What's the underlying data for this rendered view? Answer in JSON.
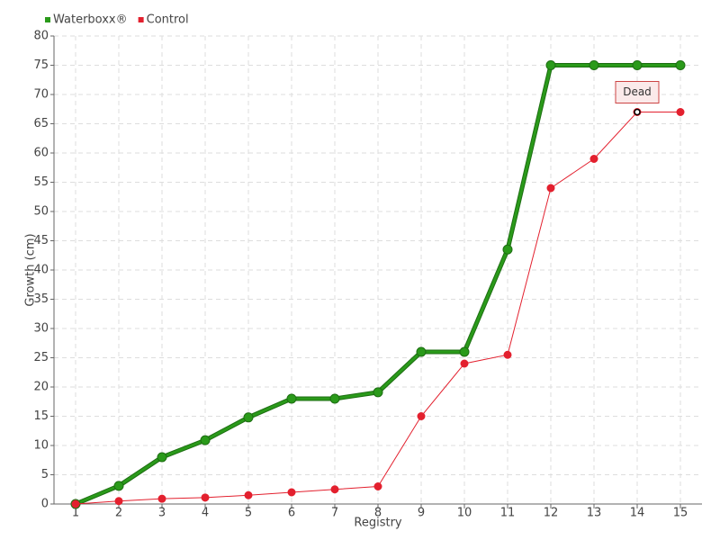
{
  "chart_data": {
    "type": "line",
    "x_label": "Registry",
    "y_label": "Growth (cm)",
    "categories": [
      "1",
      "2",
      "3",
      "4",
      "5",
      "6",
      "7",
      "8",
      "9",
      "10",
      "11",
      "12",
      "13",
      "14",
      "15"
    ],
    "series": [
      {
        "name": "Waterboxx®",
        "color": "#2a9a1a",
        "values": [
          0,
          3.1,
          8,
          10.9,
          14.8,
          18,
          18,
          19.1,
          26,
          26,
          43.5,
          75,
          75,
          75,
          75
        ]
      },
      {
        "name": "Control",
        "color": "#e3202e",
        "values": [
          0,
          0.5,
          0.9,
          1.1,
          1.5,
          2,
          2.5,
          3,
          15,
          24,
          25.5,
          54,
          59,
          67,
          67
        ]
      }
    ],
    "annotation": "Dead",
    "ylim": [
      0,
      80
    ],
    "yticks": [
      0,
      5,
      10,
      15,
      20,
      25,
      30,
      35,
      40,
      45,
      50,
      55,
      60,
      65,
      70,
      75,
      80
    ],
    "grid": true,
    "legend": "top-left"
  }
}
